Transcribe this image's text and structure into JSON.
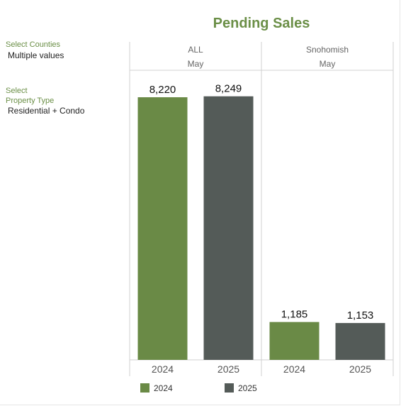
{
  "title": "Pending Sales",
  "filters": {
    "counties_label": "Select Counties",
    "counties_value": "Multiple values",
    "property_label_line1": "Select",
    "property_label_line2": "Property Type",
    "property_value": "Residential + Condo"
  },
  "colors": {
    "2024": "#6a8a46",
    "2025": "#545b58"
  },
  "chart_data": {
    "type": "bar",
    "title": "Pending Sales",
    "panels": [
      {
        "region": "ALL",
        "month": "May",
        "categories": [
          "2024",
          "2025"
        ],
        "values": [
          8220,
          8249
        ],
        "labels": [
          "8,220",
          "8,249"
        ]
      },
      {
        "region": "Snohomish",
        "month": "May",
        "categories": [
          "2024",
          "2025"
        ],
        "values": [
          1185,
          1153
        ],
        "labels": [
          "1,185",
          "1,153"
        ]
      }
    ],
    "series": [
      {
        "name": "2024"
      },
      {
        "name": "2025"
      }
    ],
    "ylim": [
      0,
      8700
    ],
    "legend": "bottom"
  }
}
